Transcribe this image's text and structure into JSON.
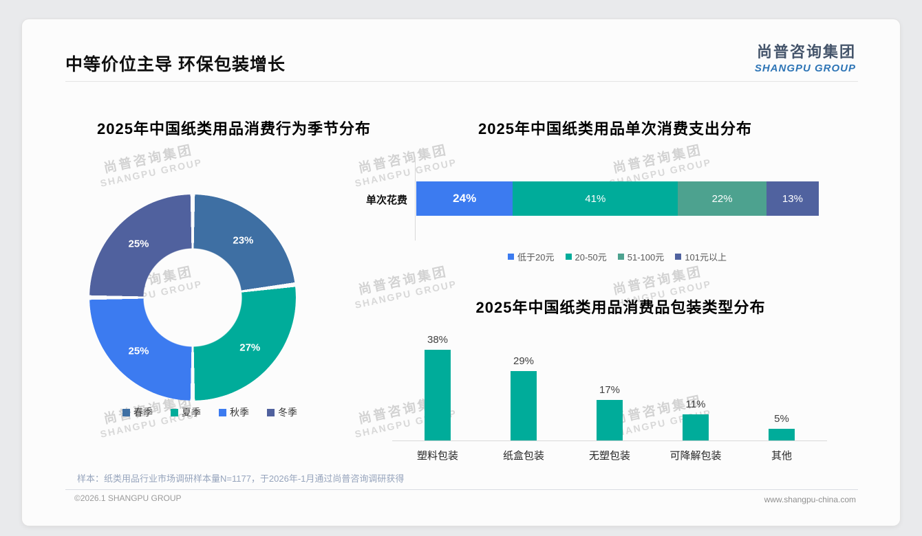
{
  "page": {
    "title": "中等价位主导 环保包装增长"
  },
  "logo": {
    "cn": "尚普咨询集团",
    "en": "SHANGPU GROUP"
  },
  "watermark": {
    "cn": "尚普咨询集团",
    "en": "SHANGPU GROUP"
  },
  "footer": {
    "note": "样本：纸类用品行业市场调研样本量N=1177，于2026年-1月通过尚普咨询调研获得",
    "copyright": "©2026.1 SHANGPU GROUP",
    "website": "www.shangpu-china.com"
  },
  "chart_data": [
    {
      "type": "pie",
      "subtype": "donut",
      "title": "2025年中国纸类用品消费行为季节分布",
      "categories": [
        "春季",
        "夏季",
        "秋季",
        "冬季"
      ],
      "values": [
        23,
        27,
        25,
        25
      ],
      "labels": [
        "23%",
        "27%",
        "25%",
        "25%"
      ],
      "colors": [
        "#3E6FA3",
        "#00AC9A",
        "#3C7BF0",
        "#50619E"
      ],
      "legend_position": "bottom",
      "start_angle_deg": 0,
      "direction": "clockwise"
    },
    {
      "type": "bar",
      "subtype": "horizontal-stacked",
      "title": "2025年中国纸类用品单次消费支出分布",
      "categories": [
        "单次花费"
      ],
      "series": [
        {
          "name": "低于20元",
          "values": [
            24
          ],
          "label": "24%",
          "color": "#3C7BF0"
        },
        {
          "name": "20-50元",
          "values": [
            41
          ],
          "label": "41%",
          "color": "#00AC9A"
        },
        {
          "name": "51-100元",
          "values": [
            22
          ],
          "label": "22%",
          "color": "#4DA28F"
        },
        {
          "name": "101元以上",
          "values": [
            13
          ],
          "label": "13%",
          "color": "#50629F"
        }
      ],
      "xlim": [
        0,
        100
      ],
      "legend_position": "bottom"
    },
    {
      "type": "bar",
      "subtype": "vertical",
      "title": "2025年中国纸类用品消费品包装类型分布",
      "categories": [
        "塑料包装",
        "纸盒包装",
        "无塑包装",
        "可降解包装",
        "其他"
      ],
      "values": [
        38,
        29,
        17,
        11,
        5
      ],
      "labels": [
        "38%",
        "29%",
        "17%",
        "11%",
        "5%"
      ],
      "bar_color": "#00AC9A",
      "ylim": [
        0,
        45
      ],
      "grid": false
    }
  ]
}
